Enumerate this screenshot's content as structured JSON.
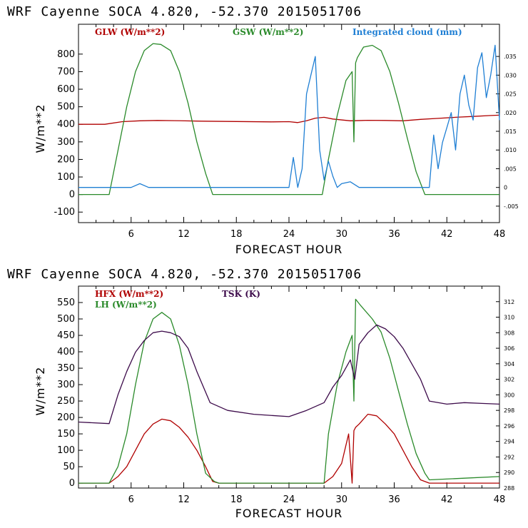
{
  "chart_data": [
    {
      "type": "line",
      "title": "WRF   Cayenne SOCA   4.820, -52.370  2015051706",
      "xlabel": "FORECAST HOUR",
      "ylabel": "W/m**2",
      "xlim": [
        0,
        48
      ],
      "ylim": [
        -160,
        970
      ],
      "xticks": [
        "6",
        "12",
        "18",
        "24",
        "30",
        "36",
        "42",
        "48"
      ],
      "yticks": [
        "800",
        "700",
        "600",
        "500",
        "400",
        "300",
        "200",
        "100",
        "0",
        "-100"
      ],
      "y2lim": [
        -0.0094,
        0.0436
      ],
      "y2ticks": [
        ".035",
        ".030",
        ".025",
        ".020",
        ".015",
        ".010",
        ".005",
        "0",
        "-.005"
      ],
      "series": [
        {
          "name": "GLW (W/m**2)",
          "color": "#b00000",
          "axis": "left",
          "x": [
            0,
            3,
            5,
            7,
            9,
            11,
            14,
            18,
            22,
            24,
            25,
            26,
            27,
            28,
            29,
            31,
            33,
            35,
            37,
            39,
            41,
            43,
            45,
            47,
            48
          ],
          "values": [
            400,
            400,
            415,
            420,
            422,
            421,
            418,
            416,
            414,
            415,
            410,
            420,
            435,
            440,
            430,
            420,
            423,
            422,
            420,
            428,
            434,
            440,
            445,
            450,
            452
          ]
        },
        {
          "name": "GSW (W/m**2)",
          "color": "#2a8a2a",
          "axis": "left",
          "x": [
            0,
            3.5,
            4.5,
            5.5,
            6.5,
            7.5,
            8.5,
            9.4,
            10.5,
            11.5,
            12.5,
            13.5,
            14.5,
            15.3,
            16,
            27.8,
            28.5,
            29.5,
            30.5,
            31.2,
            31.4,
            31.6,
            31.8,
            32.5,
            33.5,
            34.5,
            35.5,
            36.5,
            37.5,
            38.5,
            39.5,
            40,
            48
          ],
          "values": [
            0,
            0,
            250,
            500,
            700,
            820,
            860,
            855,
            820,
            700,
            520,
            300,
            120,
            0,
            0,
            0,
            200,
            450,
            650,
            700,
            300,
            750,
            780,
            840,
            850,
            820,
            700,
            520,
            320,
            130,
            0,
            0,
            0
          ]
        },
        {
          "name": "Integrated cloud (mm)",
          "color": "#1f7fd4",
          "axis": "right",
          "x": [
            0,
            6,
            7,
            8,
            24,
            24.5,
            25,
            25.5,
            26,
            26.5,
            27,
            27.5,
            28,
            28.5,
            29,
            29.5,
            30,
            31,
            32,
            40,
            40.5,
            41,
            41.5,
            42,
            42.5,
            43,
            43.5,
            44,
            44.5,
            45,
            45.5,
            46,
            46.5,
            47,
            47.5,
            48
          ],
          "values": [
            0,
            0,
            0.001,
            0,
            0,
            0.008,
            0,
            0.005,
            0.025,
            0.03,
            0.035,
            0.01,
            0.002,
            0.007,
            0.003,
            0,
            0.001,
            0.0015,
            0,
            0,
            0.014,
            0.005,
            0.012,
            0.016,
            0.02,
            0.01,
            0.025,
            0.03,
            0.022,
            0.018,
            0.032,
            0.036,
            0.024,
            0.03,
            0.038,
            0.018
          ]
        }
      ]
    },
    {
      "type": "line",
      "title": "WRF   Cayenne SOCA   4.820, -52.370  2015051706",
      "xlabel": "FORECAST HOUR",
      "ylabel": "W/m**2",
      "xlim": [
        0,
        48
      ],
      "ylim": [
        -15,
        600
      ],
      "xticks": [
        "6",
        "12",
        "18",
        "24",
        "30",
        "36",
        "42",
        "48"
      ],
      "yticks": [
        "550",
        "500",
        "450",
        "400",
        "350",
        "300",
        "250",
        "200",
        "150",
        "100",
        "50",
        "0"
      ],
      "y2lim": [
        288,
        314
      ],
      "y2ticks": [
        "312",
        "310",
        "308",
        "306",
        "304",
        "302",
        "300",
        "298",
        "296",
        "294",
        "292",
        "290",
        "288"
      ],
      "series": [
        {
          "name": "HFX (W/m**2)",
          "color": "#b00000",
          "axis": "left",
          "x": [
            0,
            3.5,
            4.5,
            5.5,
            6.5,
            7.5,
            8.5,
            9.5,
            10.5,
            11.5,
            12.5,
            13.5,
            14.5,
            15.3,
            16,
            28,
            29,
            30,
            30.8,
            31.2,
            31.4,
            31.6,
            32,
            33,
            34,
            35,
            36,
            37,
            38,
            39,
            40,
            48
          ],
          "values": [
            0,
            0,
            20,
            50,
            100,
            150,
            180,
            195,
            190,
            170,
            140,
            100,
            50,
            5,
            0,
            0,
            20,
            60,
            150,
            0,
            160,
            170,
            180,
            210,
            205,
            180,
            150,
            100,
            50,
            10,
            0,
            0
          ]
        },
        {
          "name": "LH (W/m**2)",
          "color": "#2a8a2a",
          "axis": "left",
          "x": [
            0,
            3.5,
            4.5,
            5.5,
            6.5,
            7.5,
            8.5,
            9.5,
            10.5,
            11.5,
            12.5,
            13.5,
            14.5,
            15.5,
            16,
            28,
            28.5,
            29.5,
            30.5,
            31.2,
            31.4,
            31.6,
            32.2,
            33.5,
            34.5,
            35.5,
            36.5,
            37.5,
            38.5,
            39.5,
            40,
            44,
            48
          ],
          "values": [
            0,
            0,
            50,
            150,
            300,
            430,
            500,
            520,
            500,
            420,
            300,
            150,
            30,
            5,
            0,
            0,
            150,
            300,
            400,
            450,
            250,
            560,
            540,
            500,
            460,
            380,
            280,
            180,
            90,
            30,
            10,
            15,
            20
          ]
        },
        {
          "name": "TSK (K)",
          "color": "#3c0a4a",
          "axis": "right",
          "x": [
            0,
            3.5,
            4.5,
            5.5,
            6.5,
            7.5,
            8.5,
            9.5,
            10.5,
            11.5,
            12.5,
            13.5,
            15,
            17,
            20,
            24,
            26,
            28,
            29,
            30,
            31,
            31.5,
            32,
            33,
            34,
            35,
            36,
            37,
            38,
            39,
            40,
            42,
            44,
            46,
            48
          ],
          "values": [
            296.5,
            296.3,
            300,
            303,
            305.5,
            307,
            308,
            308.2,
            308,
            307.5,
            306,
            303,
            299,
            298,
            297.5,
            297.2,
            298,
            299,
            301,
            302.5,
            304.5,
            302,
            306.5,
            308,
            309,
            308.5,
            307.5,
            306,
            304,
            302,
            299.2,
            298.8,
            299,
            298.9,
            298.8
          ]
        }
      ]
    }
  ]
}
